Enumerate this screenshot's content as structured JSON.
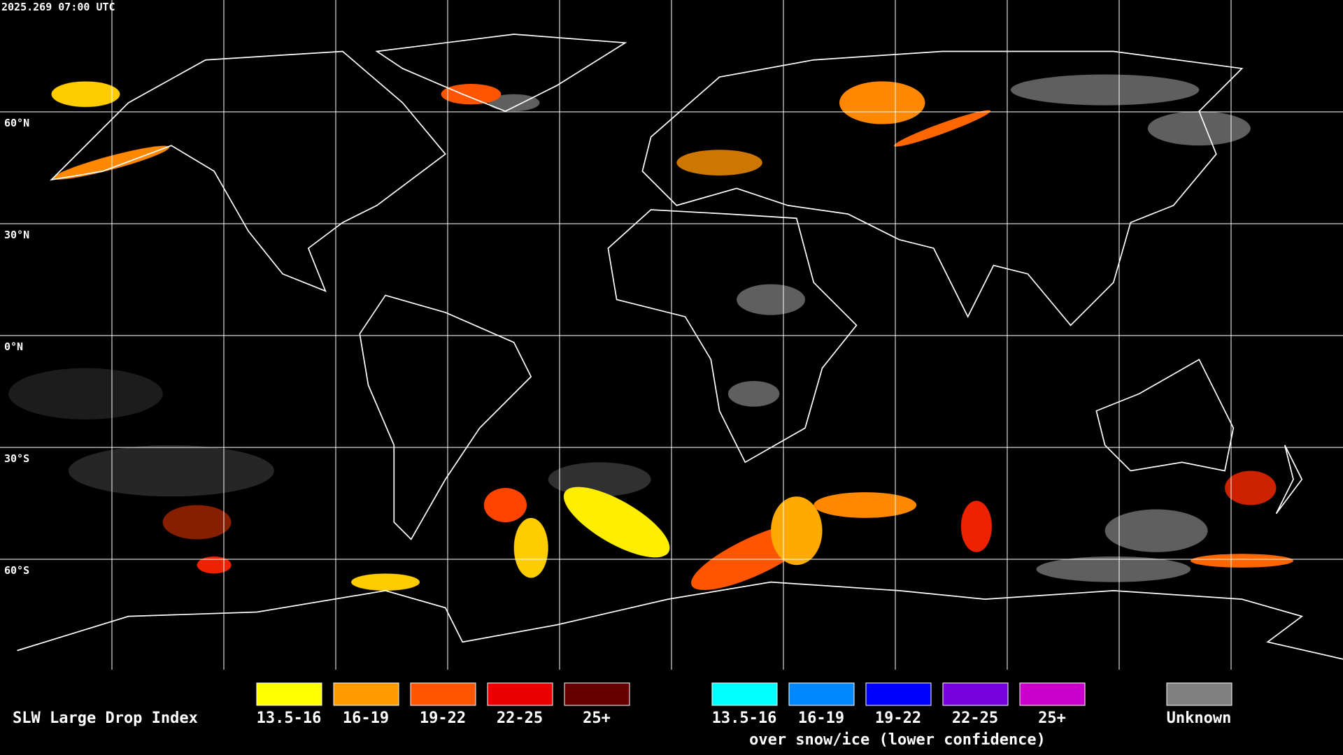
{
  "header": {
    "timestamp": "2025.269 07:00 UTC"
  },
  "map": {
    "latitude_labels": [
      "60°N",
      "30°N",
      "0°N",
      "30°S",
      "60°S"
    ]
  },
  "legend": {
    "title": "SLW Large Drop Index",
    "groups": [
      {
        "items": [
          {
            "label": "13.5-16",
            "color": "#ffff00"
          },
          {
            "label": "16-19",
            "color": "#ff9900"
          },
          {
            "label": "19-22",
            "color": "#ff5500"
          },
          {
            "label": "22-25",
            "color": "#ee0000"
          },
          {
            "label": "25+",
            "color": "#660000"
          }
        ]
      },
      {
        "items": [
          {
            "label": "13.5-16",
            "color": "#00ffff"
          },
          {
            "label": "16-19",
            "color": "#0088ff"
          },
          {
            "label": "19-22",
            "color": "#0000ff"
          },
          {
            "label": "22-25",
            "color": "#7700dd"
          },
          {
            "label": "25+",
            "color": "#cc00cc"
          }
        ],
        "caption": "over snow/ice (lower confidence)"
      }
    ],
    "unknown": {
      "label": "Unknown",
      "color": "#808080"
    }
  }
}
